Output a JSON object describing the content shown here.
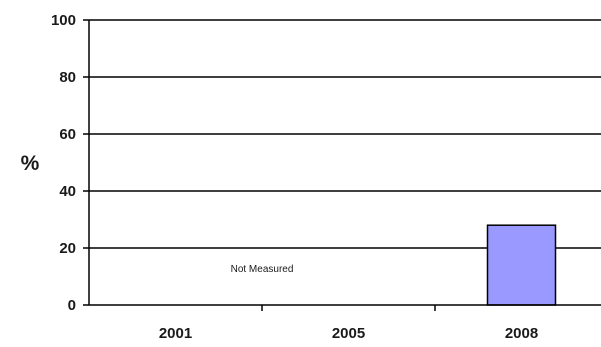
{
  "chart_data": {
    "type": "bar",
    "title": "",
    "xlabel": "",
    "ylabel": "%",
    "ylim": [
      0,
      100
    ],
    "yticks": [
      0,
      20,
      40,
      60,
      80,
      100
    ],
    "categories": [
      "2001",
      "2005",
      "2008"
    ],
    "values": [
      null,
      null,
      28
    ],
    "grid": true,
    "bar_color": "#9999ff",
    "annotations": [
      {
        "text": "Not Measured",
        "category_span": [
          "2001",
          "2005"
        ]
      }
    ]
  }
}
